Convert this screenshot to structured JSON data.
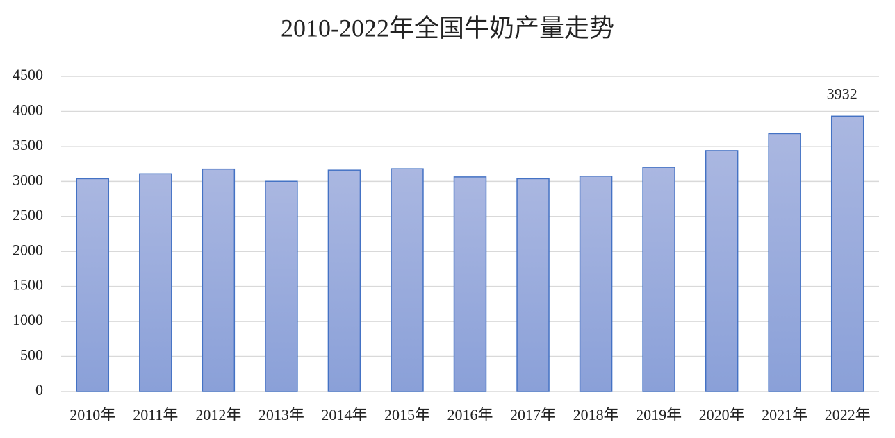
{
  "chart_data": {
    "type": "bar",
    "title": "2010-2022年全国牛奶产量走势",
    "categories": [
      "2010年",
      "2011年",
      "2012年",
      "2013年",
      "2014年",
      "2015年",
      "2016年",
      "2017年",
      "2018年",
      "2019年",
      "2020年",
      "2021年",
      "2022年"
    ],
    "values": [
      3039,
      3109,
      3175,
      3001,
      3160,
      3180,
      3064,
      3039,
      3075,
      3201,
      3440,
      3683,
      3932
    ],
    "value_labels": [
      null,
      null,
      null,
      null,
      null,
      null,
      null,
      null,
      null,
      null,
      null,
      null,
      "3932"
    ],
    "color": "#4472c4",
    "ylim": [
      0,
      4500
    ],
    "yticks": [
      0,
      500,
      1000,
      1500,
      2000,
      2500,
      3000,
      3500,
      4000,
      4500
    ],
    "grid": true
  }
}
